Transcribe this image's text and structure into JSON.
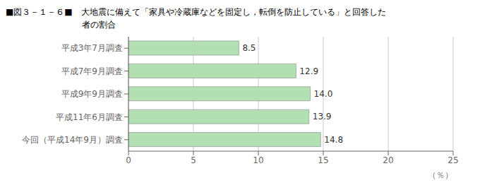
{
  "chart_data": {
    "type": "bar",
    "title": "■図３－１－６■　大地震に備えて「家具や冷蔵庫などを固定し，転倒を防止している」と回答した\n　　　　　　　　　者の割合",
    "categories": [
      "平成3年7月調査",
      "平成7年9月調査",
      "平成9年9月調査",
      "平成11年6月調査",
      "今回（平成14年9月）調査"
    ],
    "values": [
      8.5,
      12.9,
      14.0,
      13.9,
      14.8
    ],
    "value_labels": [
      "8.5",
      "12.9",
      "14.0",
      "13.9",
      "14.8"
    ],
    "data_labels": true,
    "color": "#b2e0b2",
    "orientation": "horizontal",
    "xlabel": "（％）",
    "xlim": [
      0,
      25
    ],
    "xticks": [
      0,
      5,
      10,
      15,
      20,
      25
    ],
    "grid": true
  }
}
